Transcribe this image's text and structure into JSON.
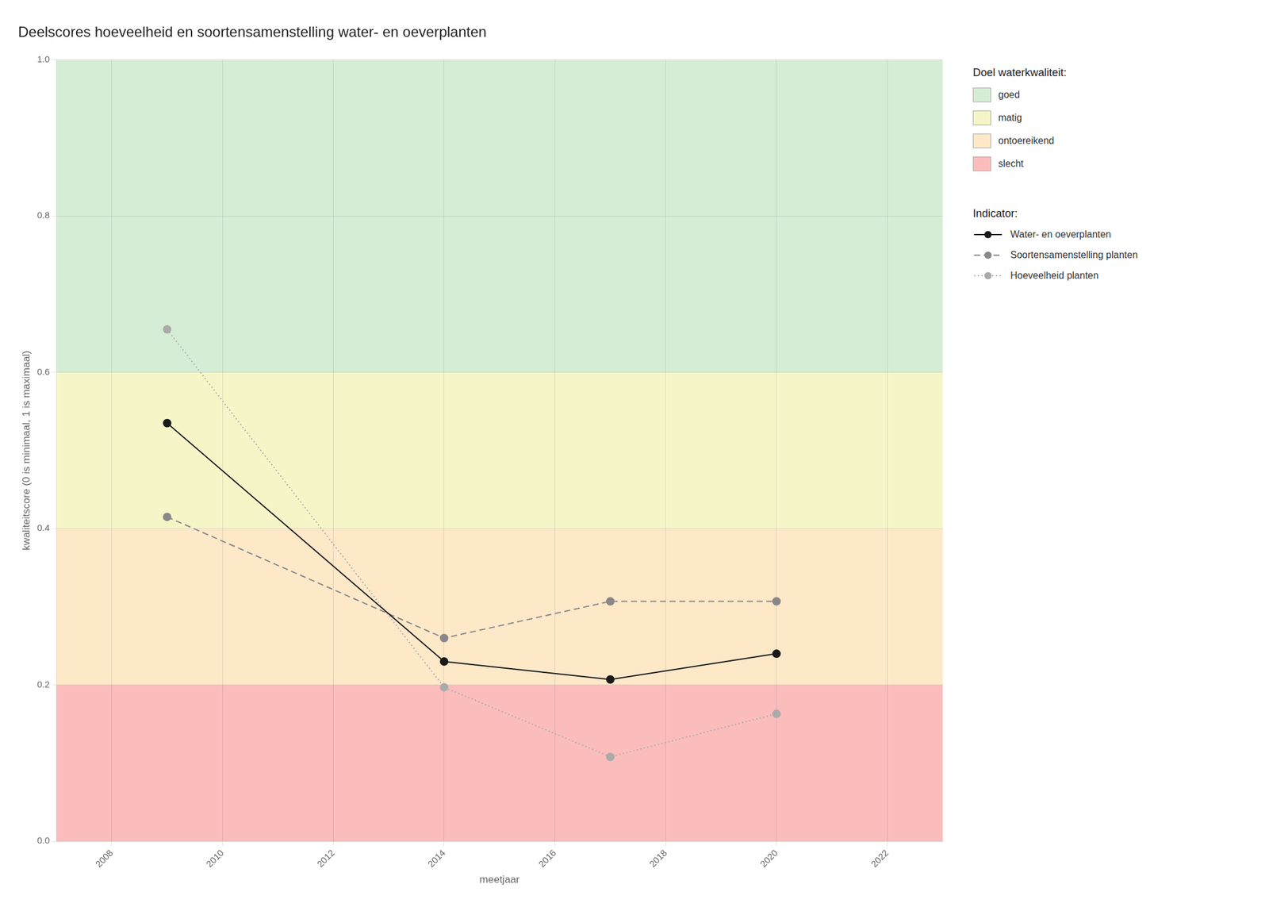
{
  "chart_data": {
    "type": "line",
    "title": "Deelscores hoeveelheid en soortensamenstelling water- en oeverplanten",
    "x_label": "meetjaar",
    "y_label": "kwaliteitscore (0 is minimaal, 1 is maximaal)",
    "xlim": [
      2007,
      2023
    ],
    "ylim": [
      0.0,
      1.0
    ],
    "xticks": [
      2008,
      2010,
      2012,
      2014,
      2016,
      2018,
      2020,
      2022
    ],
    "yticks": [
      {
        "value": 0.0,
        "label": "0.0"
      },
      {
        "value": 0.2,
        "label": "0.2"
      },
      {
        "value": 0.4,
        "label": "0.4"
      },
      {
        "value": 0.6,
        "label": "0.6"
      },
      {
        "value": 0.8,
        "label": "0.8"
      },
      {
        "value": 1.0,
        "label": "1.0"
      }
    ],
    "grid": true,
    "x": [
      2009,
      2014,
      2017,
      2020
    ],
    "series_legend_title": "Indicator:",
    "series": [
      {
        "name": "Water- en oeverplanten",
        "color": "#1a1a1a",
        "line_style": "solid",
        "marker": "circle",
        "values": [
          0.535,
          0.23,
          0.207,
          0.24
        ]
      },
      {
        "name": "Soortensamenstelling planten",
        "color": "#888888",
        "line_style": "dashed",
        "marker": "circle",
        "values": [
          0.415,
          0.26,
          0.307,
          0.307
        ]
      },
      {
        "name": "Hoeveelheid planten",
        "color": "#aaaaaa",
        "line_style": "dotted",
        "marker": "circle",
        "values": [
          0.655,
          0.197,
          0.108,
          0.163
        ]
      }
    ],
    "bands_legend_title": "Doel waterkwaliteit:",
    "bands": [
      {
        "name": "goed",
        "ymin": 0.6,
        "ymax": 1.0,
        "color": "#d6edd5"
      },
      {
        "name": "matig",
        "ymin": 0.4,
        "ymax": 0.6,
        "color": "#f5f5c8"
      },
      {
        "name": "ontoereikend",
        "ymin": 0.2,
        "ymax": 0.4,
        "color": "#fde8c8"
      },
      {
        "name": "slecht",
        "ymin": 0.0,
        "ymax": 0.2,
        "color": "#fbbcbc"
      }
    ]
  }
}
